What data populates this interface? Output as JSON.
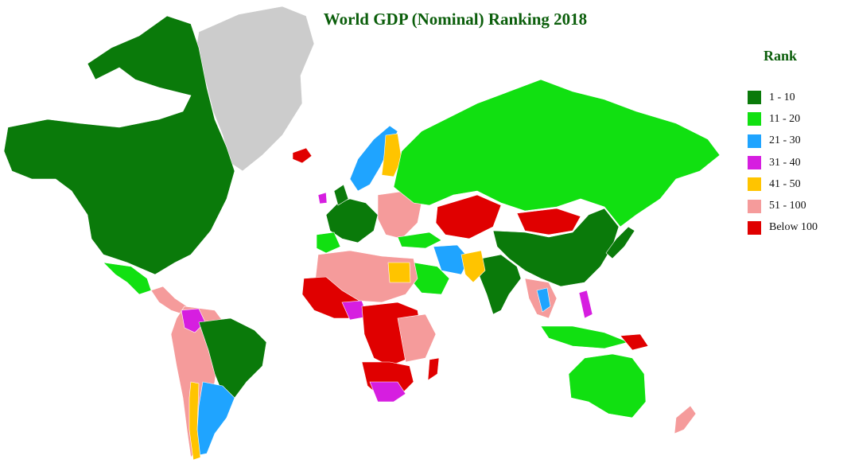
{
  "title": "World GDP (Nominal) Ranking 2018",
  "legend": {
    "title": "Rank",
    "items": [
      {
        "label": "1 - 10",
        "color": "#0a7a0a"
      },
      {
        "label": "11 - 20",
        "color": "#11e011"
      },
      {
        "label": "21 - 30",
        "color": "#1fa4ff"
      },
      {
        "label": "31 - 40",
        "color": "#d61ee0"
      },
      {
        "label": "41 - 50",
        "color": "#ffc400"
      },
      {
        "label": "51 - 100",
        "color": "#f59b9b"
      },
      {
        "label": "Below 100",
        "color": "#e00000"
      }
    ]
  },
  "no_data_color": "#cccccc"
}
